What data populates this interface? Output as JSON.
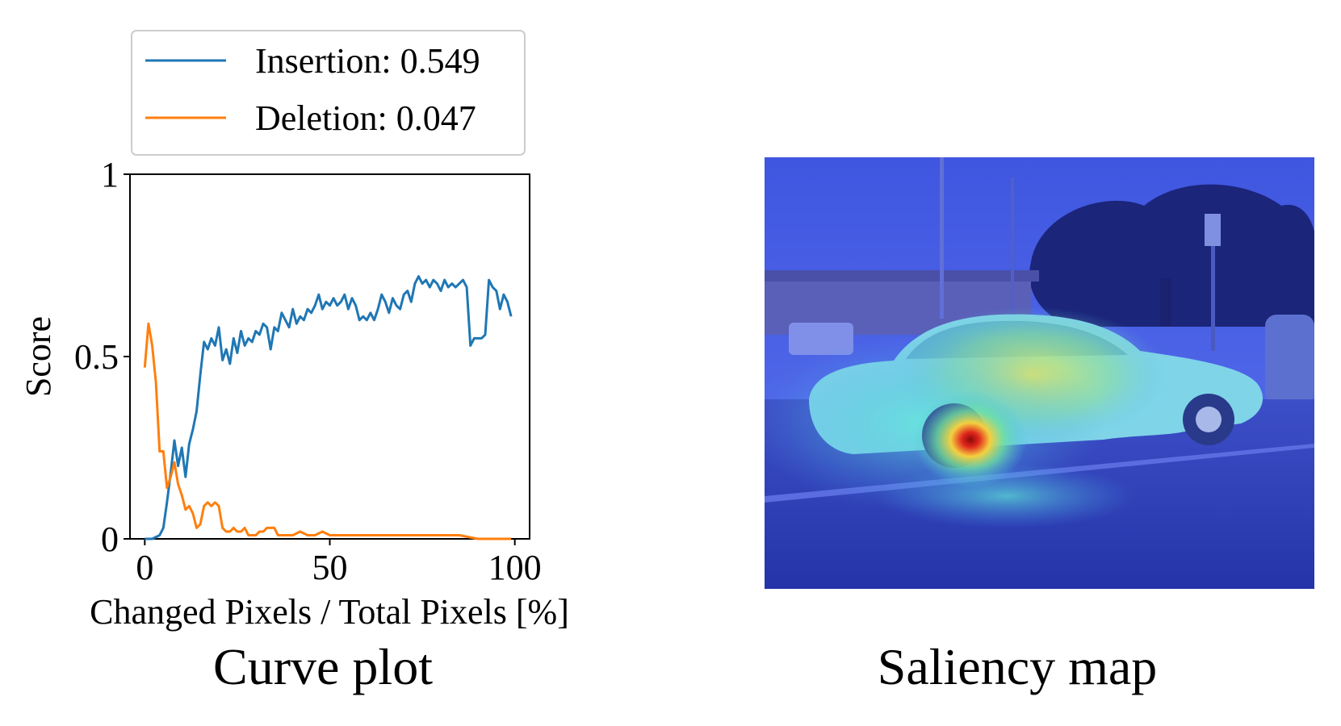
{
  "colors": {
    "insertion": "#1f77b4",
    "deletion": "#ff7f0e",
    "heatmap_low": "#3a4fd8",
    "heatmap_high": "#e0261c"
  },
  "captions": {
    "left": "Curve plot",
    "right": "Saliency map"
  },
  "chart_data": {
    "type": "line",
    "title": "",
    "xlabel": "Changed Pixels / Total Pixels [%]",
    "ylabel": "Score",
    "xlim": [
      -4,
      104
    ],
    "ylim": [
      0,
      1
    ],
    "xticks": [
      0,
      50,
      100
    ],
    "xtick_labels": [
      "0",
      "50",
      "100"
    ],
    "yticks": [
      0,
      0.5,
      1
    ],
    "ytick_labels": [
      "0",
      "0.5",
      "1"
    ],
    "grid": false,
    "legend_position": "top, above plot",
    "series": [
      {
        "name": "Insertion: 0.549",
        "color": "#1f77b4",
        "x": [
          0,
          2,
          4,
          5,
          6,
          7,
          8,
          9,
          10,
          11,
          12,
          13,
          14,
          15,
          16,
          17,
          18,
          19,
          20,
          21,
          22,
          23,
          24,
          25,
          26,
          27,
          28,
          29,
          30,
          31,
          32,
          33,
          34,
          35,
          36,
          37,
          38,
          39,
          40,
          41,
          42,
          43,
          44,
          45,
          46,
          47,
          48,
          49,
          50,
          51,
          52,
          53,
          54,
          55,
          56,
          57,
          58,
          59,
          60,
          61,
          62,
          63,
          64,
          65,
          66,
          67,
          68,
          69,
          70,
          71,
          72,
          73,
          74,
          75,
          76,
          77,
          78,
          79,
          80,
          81,
          82,
          83,
          84,
          85,
          86,
          87,
          88,
          89,
          90,
          91,
          92,
          93,
          94,
          95,
          96,
          97,
          98,
          99
        ],
        "y": [
          0.0,
          0.0,
          0.01,
          0.03,
          0.1,
          0.18,
          0.27,
          0.2,
          0.25,
          0.17,
          0.26,
          0.3,
          0.35,
          0.45,
          0.54,
          0.52,
          0.55,
          0.53,
          0.58,
          0.49,
          0.52,
          0.48,
          0.55,
          0.51,
          0.57,
          0.53,
          0.55,
          0.54,
          0.57,
          0.56,
          0.59,
          0.58,
          0.52,
          0.58,
          0.57,
          0.62,
          0.6,
          0.58,
          0.63,
          0.59,
          0.61,
          0.6,
          0.63,
          0.62,
          0.64,
          0.67,
          0.63,
          0.65,
          0.64,
          0.66,
          0.64,
          0.65,
          0.67,
          0.63,
          0.66,
          0.64,
          0.6,
          0.61,
          0.6,
          0.62,
          0.6,
          0.63,
          0.67,
          0.65,
          0.62,
          0.66,
          0.64,
          0.63,
          0.67,
          0.68,
          0.65,
          0.7,
          0.72,
          0.7,
          0.71,
          0.69,
          0.71,
          0.7,
          0.68,
          0.71,
          0.69,
          0.7,
          0.69,
          0.7,
          0.71,
          0.69,
          0.53,
          0.55,
          0.55,
          0.55,
          0.56,
          0.71,
          0.69,
          0.68,
          0.63,
          0.67,
          0.65,
          0.61
        ]
      },
      {
        "name": "Deletion: 0.047",
        "color": "#ff7f0e",
        "x": [
          0,
          1,
          2,
          3,
          4,
          5,
          6,
          7,
          8,
          9,
          10,
          11,
          12,
          13,
          14,
          15,
          16,
          17,
          18,
          19,
          20,
          21,
          22,
          23,
          24,
          25,
          26,
          27,
          28,
          29,
          30,
          31,
          32,
          33,
          34,
          35,
          36,
          38,
          40,
          42,
          44,
          46,
          48,
          50,
          55,
          60,
          65,
          70,
          75,
          80,
          85,
          90,
          95,
          99
        ],
        "y": [
          0.47,
          0.59,
          0.53,
          0.43,
          0.24,
          0.24,
          0.14,
          0.17,
          0.21,
          0.15,
          0.12,
          0.08,
          0.09,
          0.07,
          0.03,
          0.04,
          0.09,
          0.1,
          0.09,
          0.1,
          0.09,
          0.03,
          0.02,
          0.02,
          0.03,
          0.02,
          0.02,
          0.03,
          0.01,
          0.01,
          0.01,
          0.02,
          0.02,
          0.03,
          0.03,
          0.03,
          0.01,
          0.01,
          0.01,
          0.02,
          0.01,
          0.01,
          0.02,
          0.01,
          0.01,
          0.01,
          0.01,
          0.01,
          0.01,
          0.01,
          0.01,
          0.0,
          0.0,
          0.0
        ]
      }
    ]
  }
}
